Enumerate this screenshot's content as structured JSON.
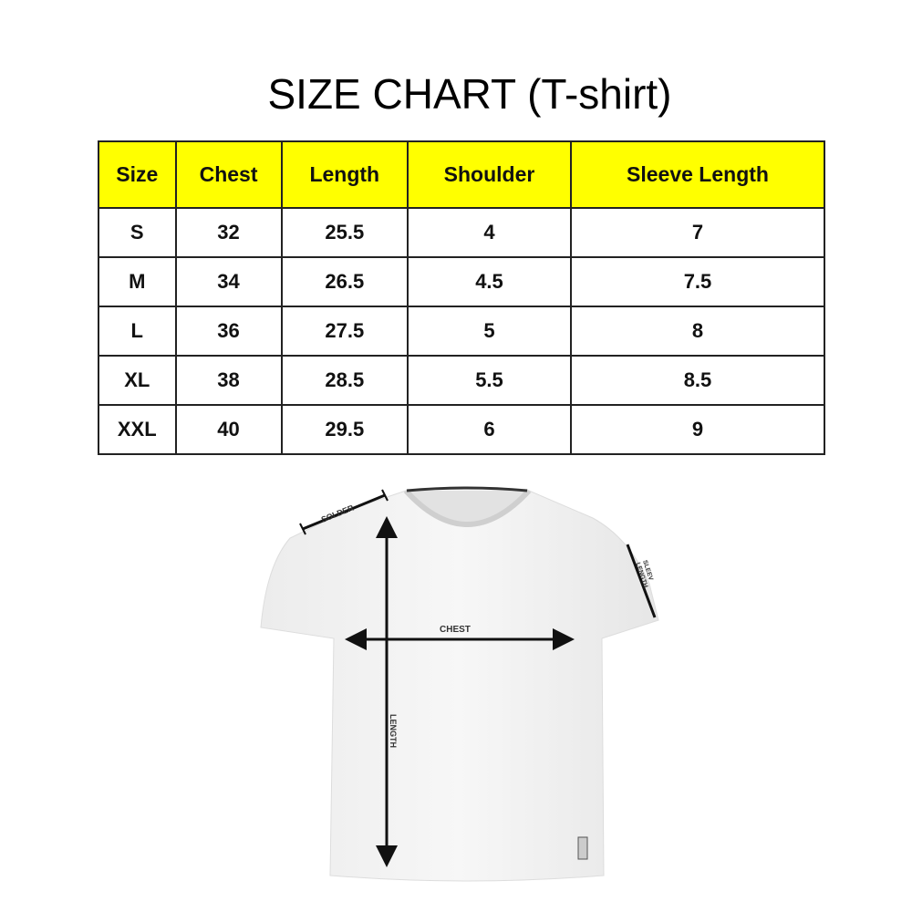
{
  "title": "SIZE CHART (T-shirt)",
  "table": {
    "header_color": "#ffff00",
    "columns": [
      "Size",
      "Chest",
      "Length",
      "Shoulder",
      "Sleeve Length"
    ],
    "rows": [
      [
        "S",
        "32",
        "25.5",
        "4",
        "7"
      ],
      [
        "M",
        "34",
        "26.5",
        "4.5",
        "7.5"
      ],
      [
        "L",
        "36",
        "27.5",
        "5",
        "8"
      ],
      [
        "XL",
        "38",
        "28.5",
        "5.5",
        "8.5"
      ],
      [
        "XXL",
        "40",
        "29.5",
        "6",
        "9"
      ]
    ]
  },
  "diagram": {
    "shoulder_label": "SOLDER",
    "chest_label": "CHEST",
    "length_label": "LENGTH",
    "sleeve_label_1": "SLEEV",
    "sleeve_label_2": "LENGTH"
  }
}
